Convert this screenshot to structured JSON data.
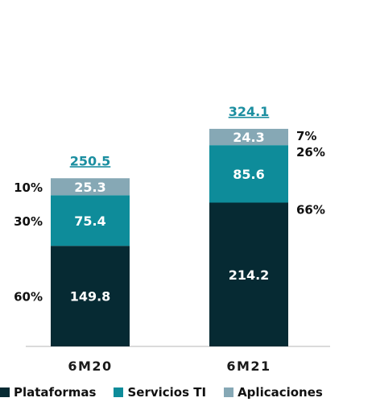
{
  "colors": {
    "plataformas": "#062a33",
    "servicios": "#0e8c9a",
    "aplicaciones": "#86a8b5",
    "total": "#1b8ea0",
    "axis": "#cfcfcf"
  },
  "chart_data": {
    "type": "bar",
    "stacked": true,
    "categories": [
      "6M20",
      "6M21"
    ],
    "series": [
      {
        "name": "Plataformas",
        "key": "plataformas",
        "values": [
          149.8,
          214.2
        ],
        "labels": [
          "149.8",
          "214.2"
        ],
        "pct": [
          "60%",
          "66%"
        ]
      },
      {
        "name": "Servicios TI",
        "key": "servicios",
        "values": [
          75.4,
          85.6
        ],
        "labels": [
          "75.4",
          "85.6"
        ],
        "pct": [
          "30%",
          "26%"
        ]
      },
      {
        "name": "Aplicaciones",
        "key": "aplicaciones",
        "values": [
          25.3,
          24.3
        ],
        "labels": [
          "25.3",
          "24.3"
        ],
        "pct": [
          "10%",
          "7%"
        ]
      }
    ],
    "totals": [
      "250.5",
      "324.1"
    ],
    "legend_position": "bottom",
    "grid": false
  }
}
